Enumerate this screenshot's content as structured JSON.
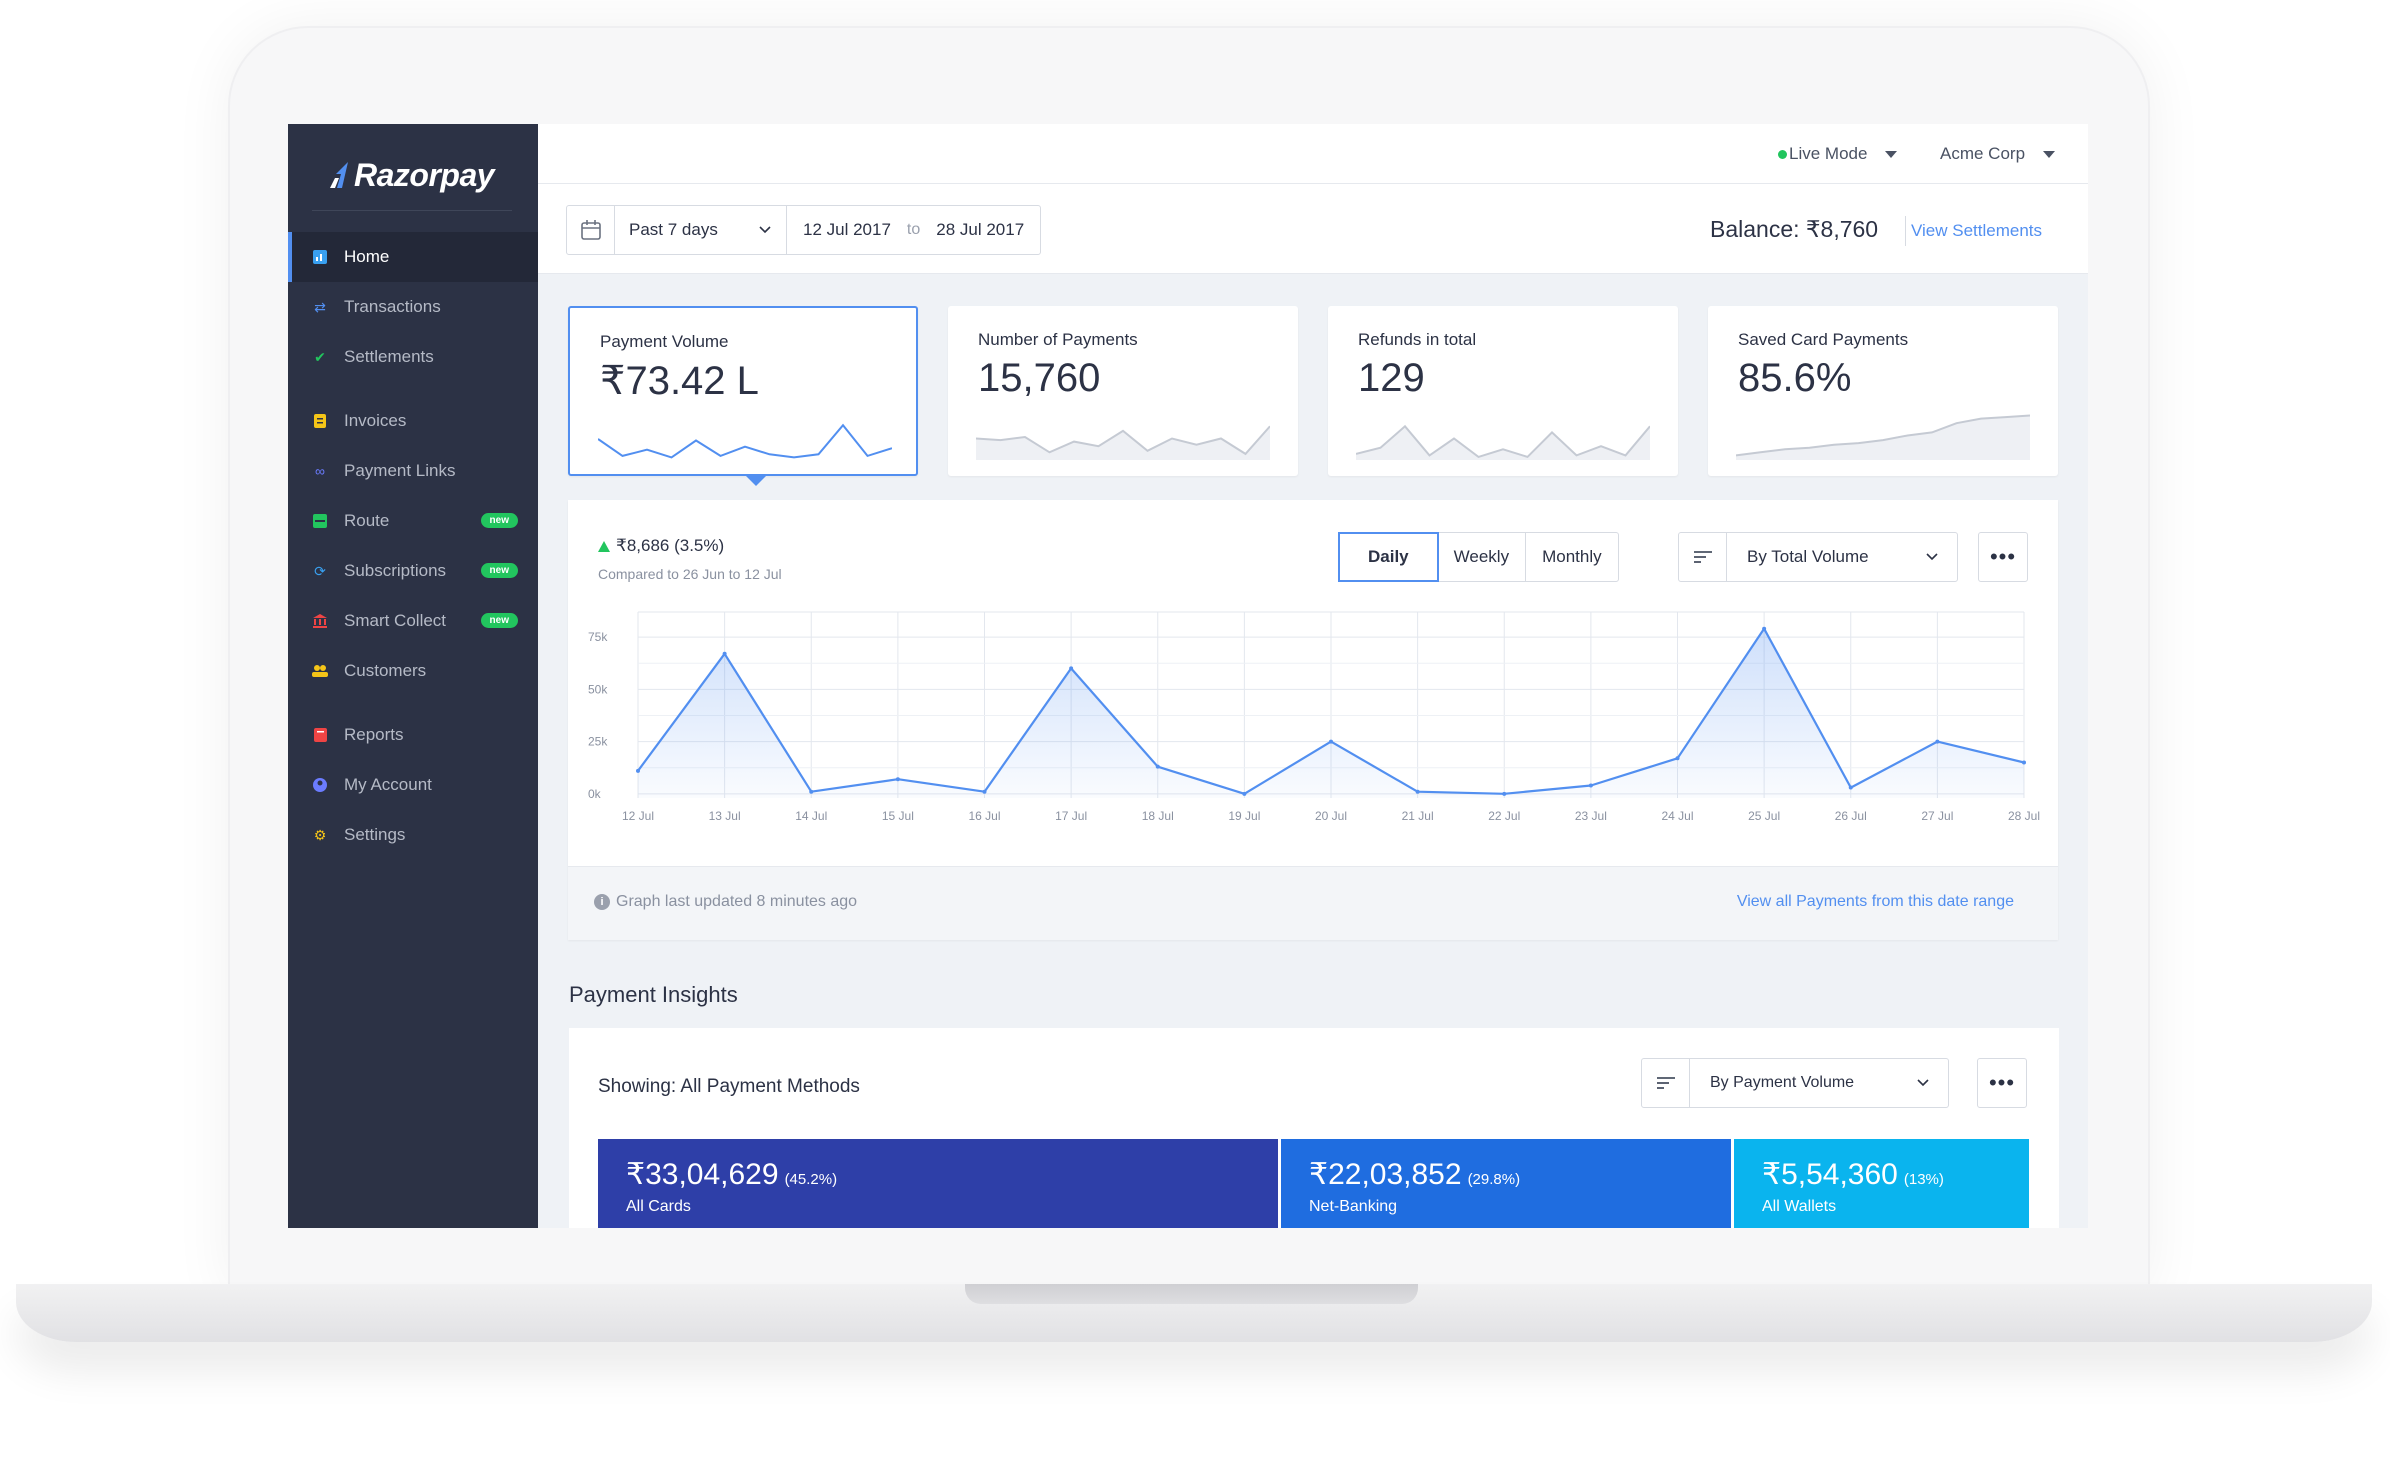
{
  "brand": {
    "name": "Razorpay"
  },
  "sidebar": {
    "items": [
      {
        "label": "Home",
        "icon": "home-icon",
        "active": true
      },
      {
        "label": "Transactions",
        "icon": "transactions-icon"
      },
      {
        "label": "Settlements",
        "icon": "settlements-icon"
      },
      {
        "label": "Invoices",
        "icon": "invoices-icon"
      },
      {
        "label": "Payment Links",
        "icon": "link-icon"
      },
      {
        "label": "Route",
        "icon": "route-icon",
        "badge": "new"
      },
      {
        "label": "Subscriptions",
        "icon": "subscriptions-icon",
        "badge": "new"
      },
      {
        "label": "Smart Collect",
        "icon": "bank-icon",
        "badge": "new"
      },
      {
        "label": "Customers",
        "icon": "customers-icon"
      },
      {
        "label": "Reports",
        "icon": "reports-icon"
      },
      {
        "label": "My Account",
        "icon": "account-icon"
      },
      {
        "label": "Settings",
        "icon": "gear-icon"
      }
    ]
  },
  "topbar": {
    "mode": "Live Mode",
    "company": "Acme Corp"
  },
  "filter": {
    "range_label": "Past 7 days",
    "from": "12 Jul 2017",
    "to_word": "to",
    "to": "28 Jul 2017",
    "balance": "Balance:  ₹8,760",
    "view_settlements": "View Settlements"
  },
  "stats": [
    {
      "label": "Payment Volume",
      "value": "₹73.42 L",
      "spark": [
        15,
        4,
        8,
        3,
        14,
        4,
        10,
        5,
        3,
        5,
        24,
        4,
        9
      ]
    },
    {
      "label": "Number of Payments",
      "value": "15,760",
      "spark": [
        14,
        13,
        15,
        5,
        12,
        9,
        19,
        6,
        14,
        10,
        14,
        4,
        22
      ]
    },
    {
      "label": "Refunds in total",
      "value": "129",
      "spark": [
        4,
        8,
        22,
        3,
        14,
        2,
        7,
        2,
        18,
        3,
        9,
        3,
        22
      ]
    },
    {
      "label": "Saved Card Payments",
      "value": "85.6%",
      "spark": [
        3,
        5,
        7,
        8,
        10,
        11,
        13,
        16,
        18,
        24,
        27,
        28,
        29
      ]
    }
  ],
  "chart_header": {
    "delta": "₹8,686",
    "delta_pct": "(3.5%)",
    "compared": "Compared to 26 Jun to 12 Jul",
    "periods": [
      "Daily",
      "Weekly",
      "Monthly"
    ],
    "selected_period": "Daily",
    "sort_by": "By Total Volume"
  },
  "chart_data": {
    "type": "area",
    "x": [
      "12 Jul",
      "13 Jul",
      "14 Jul",
      "15 Jul",
      "16 Jul",
      "17 Jul",
      "18 Jul",
      "19 Jul",
      "20 Jul",
      "21 Jul",
      "22 Jul",
      "23 Jul",
      "24 Jul",
      "25 Jul",
      "26 Jul",
      "27 Jul",
      "28 Jul"
    ],
    "values": [
      11000,
      67000,
      1000,
      7000,
      1000,
      60000,
      13000,
      0,
      25000,
      1000,
      0,
      4000,
      17000,
      79000,
      3000,
      25000,
      15000
    ],
    "yticks": [
      0,
      25000,
      50000,
      75000
    ],
    "ytick_labels": [
      "0k",
      "25k",
      "50k",
      "75k"
    ],
    "ylim": [
      -2000,
      87000
    ],
    "grid": true,
    "color": "#528ff0"
  },
  "chart_footer": {
    "note": "Graph last updated 8 minutes ago",
    "link": "View all Payments from this date range"
  },
  "insights": {
    "title": "Payment Insights",
    "showing": "Showing:  All Payment Methods",
    "sort_by": "By Payment Volume",
    "methods": [
      {
        "amount": "₹33,04,629",
        "pct": "(45.2%)",
        "label": "All Cards",
        "color": "#2e3fa8",
        "share": 0.452
      },
      {
        "amount": "₹22,03,852",
        "pct": "(29.8%)",
        "label": "Net-Banking",
        "color": "#1f6de0",
        "share": 0.298
      },
      {
        "amount": "₹5,54,360",
        "pct": "(13%)",
        "label": "All Wallets",
        "color": "#0ab4ee",
        "share": 0.13
      }
    ]
  }
}
